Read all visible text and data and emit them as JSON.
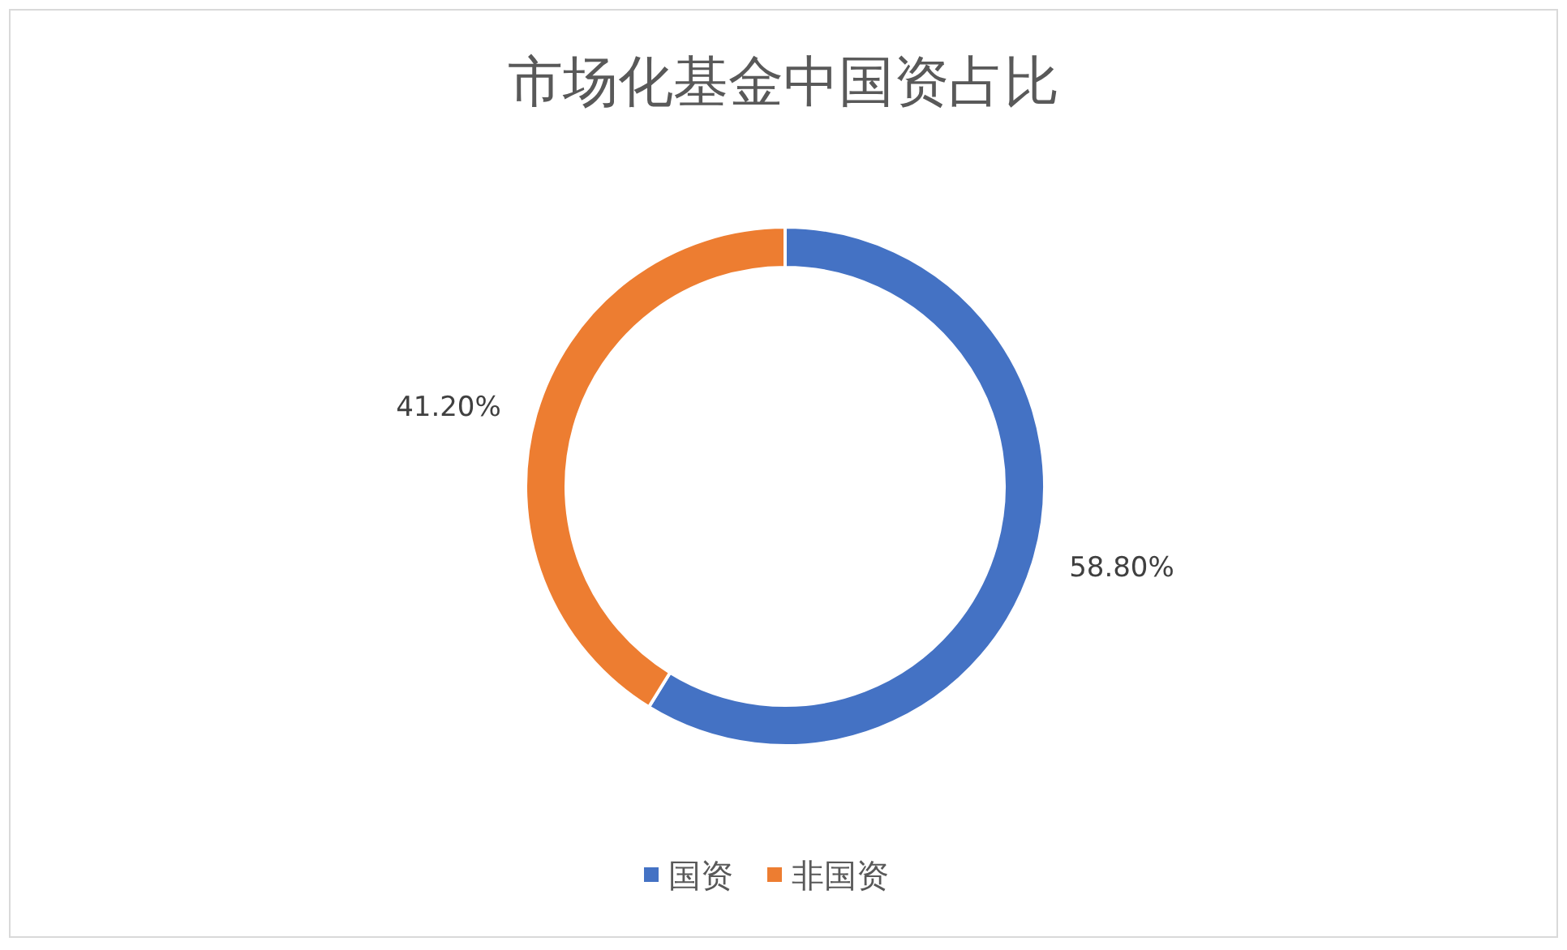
{
  "chart_data": {
    "type": "donut",
    "title": "市场化基金中国资占比",
    "categories": [
      "国资",
      "非国资"
    ],
    "values": [
      58.8,
      41.2
    ],
    "value_labels": [
      "58.80%",
      "41.20%"
    ],
    "colors": [
      "#4472c4",
      "#ed7d31"
    ],
    "legend": "bottom"
  }
}
